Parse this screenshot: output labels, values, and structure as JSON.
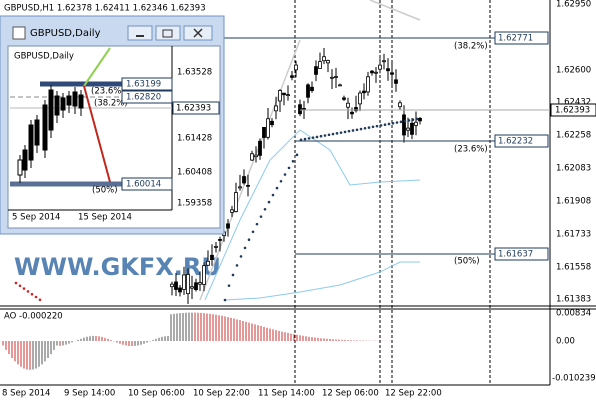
{
  "main": {
    "header": "GBPUSD,H1  1.62378 1.62411 1.62346 1.62393",
    "price_axis": [
      "1.62950",
      "1.62600",
      "1.62432",
      "1.62258",
      "1.62083",
      "1.61908",
      "1.61733",
      "1.61558",
      "1.61383"
    ],
    "current_price": "1.62393",
    "levels": [
      {
        "price": "1.62771",
        "label": "(38.2%)"
      },
      {
        "price": "1.62232",
        "label": "(23.6%)"
      },
      {
        "price": "1.61637",
        "label": "(50%)"
      }
    ],
    "watermark": "WWW.GKFX.RU"
  },
  "indicator": {
    "title": "AO -0.000220",
    "axis": [
      "0.00834",
      "0.00",
      "-0.010239"
    ]
  },
  "time_axis": [
    "8 Sep 2014",
    "9 Sep 14:00",
    "10 Sep 06:00",
    "10 Sep 22:00",
    "11 Sep 14:00",
    "12 Sep 06:00",
    "12 Sep 22:00"
  ],
  "inset": {
    "window_title": "GBPUSD,Daily",
    "chart_label": "GBPUSD,Daily",
    "price_axis": [
      "1.63528",
      "1.61428",
      "1.60408",
      "1.59358"
    ],
    "boxes": [
      "1.63199",
      "1.62820",
      "1.62393",
      "1.60014"
    ],
    "levels": [
      "(23.6%)",
      "(38.2%)",
      "(50%)"
    ],
    "time_axis": [
      "5 Sep 2014",
      "15 Sep 2014"
    ]
  }
}
